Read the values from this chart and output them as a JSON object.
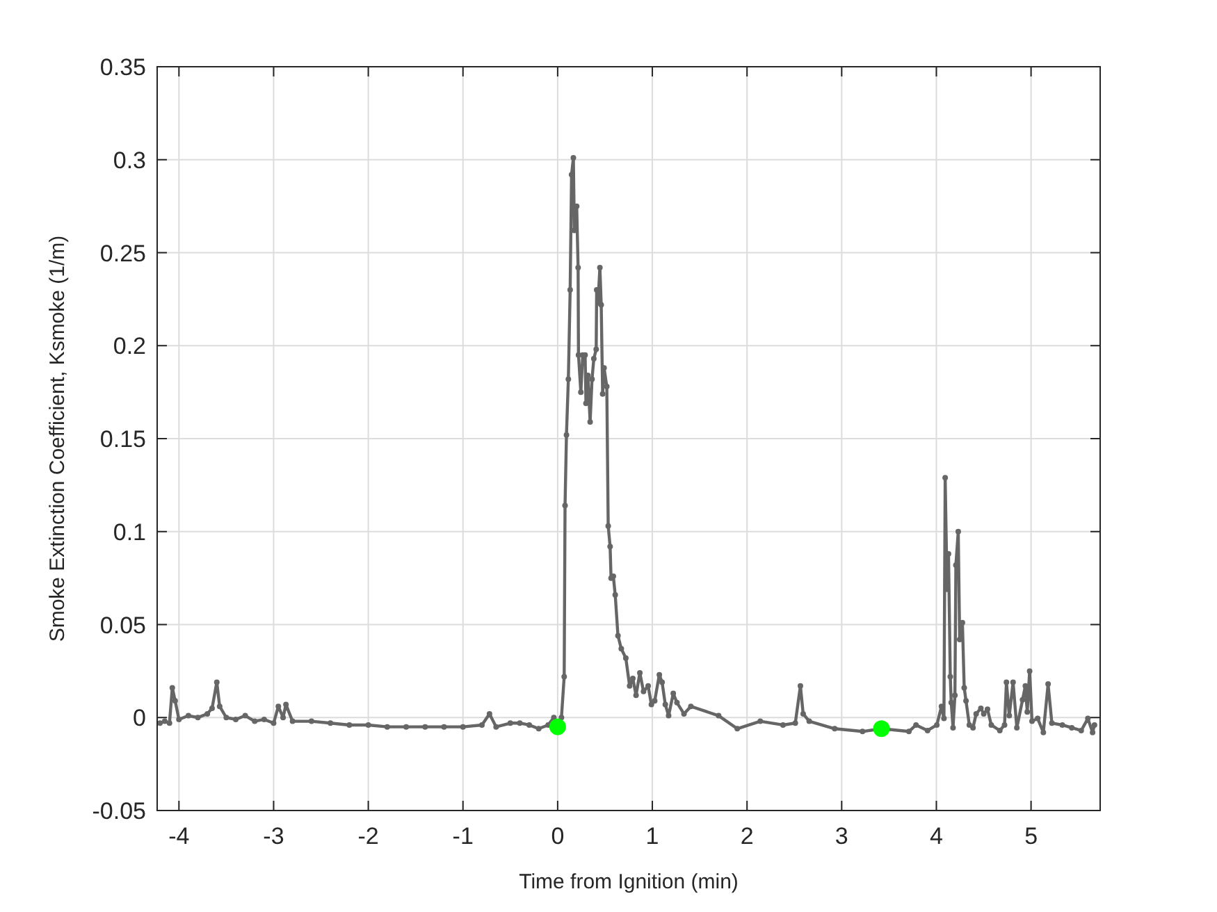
{
  "chart_data": {
    "type": "line",
    "xlabel": "Time from Ignition (min)",
    "ylabel": "Smoke Extinction Coefficient, Ksmoke (1/m)",
    "xlim": [
      -4.23,
      5.73
    ],
    "ylim": [
      -0.05,
      0.35
    ],
    "xticks": [
      -4,
      -3,
      -2,
      -1,
      0,
      1,
      2,
      3,
      4,
      5
    ],
    "yticks": [
      -0.05,
      0,
      0.05,
      0.1,
      0.15,
      0.2,
      0.25,
      0.3,
      0.35
    ],
    "grid": true,
    "marker": "circle",
    "series": [
      {
        "color": "#666666",
        "x": [
          -4.2,
          -4.15,
          -4.1,
          -4.07,
          -4.04,
          -4.0,
          -3.9,
          -3.8,
          -3.7,
          -3.65,
          -3.6,
          -3.57,
          -3.5,
          -3.4,
          -3.3,
          -3.2,
          -3.1,
          -3.0,
          -2.95,
          -2.9,
          -2.87,
          -2.8,
          -2.6,
          -2.4,
          -2.2,
          -2.0,
          -1.8,
          -1.6,
          -1.4,
          -1.2,
          -1.0,
          -0.8,
          -0.72,
          -0.65,
          -0.5,
          -0.4,
          -0.3,
          -0.2,
          -0.1,
          -0.04,
          0.0,
          0.04,
          0.069,
          0.078,
          0.093,
          0.113,
          0.132,
          0.147,
          0.166,
          0.176,
          0.201,
          0.216,
          0.22,
          0.245,
          0.265,
          0.29,
          0.299,
          0.319,
          0.343,
          0.363,
          0.382,
          0.407,
          0.412,
          0.426,
          0.446,
          0.46,
          0.475,
          0.49,
          0.519,
          0.534,
          0.554,
          0.564,
          0.588,
          0.608,
          0.637,
          0.672,
          0.72,
          0.76,
          0.794,
          0.828,
          0.868,
          0.907,
          0.956,
          0.99,
          1.025,
          1.074,
          1.103,
          1.137,
          1.172,
          1.221,
          1.26,
          1.334,
          1.407,
          1.7,
          1.897,
          2.14,
          2.38,
          2.51,
          2.564,
          2.593,
          2.657,
          2.926,
          3.22,
          3.42,
          3.71,
          3.785,
          3.907,
          4.005,
          4.054,
          4.08,
          4.093,
          4.113,
          4.128,
          4.147,
          4.157,
          4.176,
          4.196,
          4.206,
          4.231,
          4.246,
          4.275,
          4.294,
          4.313,
          4.348,
          4.387,
          4.42,
          4.47,
          4.5,
          4.54,
          4.58,
          4.67,
          4.72,
          4.74,
          4.77,
          4.81,
          4.85,
          4.91,
          4.94,
          4.96,
          4.985,
          5.01,
          5.07,
          5.13,
          5.18,
          5.22,
          5.33,
          5.43,
          5.53,
          5.6,
          5.65,
          5.67
        ],
        "values": [
          -0.003,
          -0.002,
          -0.003,
          0.016,
          0.009,
          -0.001,
          0.001,
          0.0,
          0.002,
          0.005,
          0.019,
          0.006,
          0.0,
          -0.001,
          0.001,
          -0.002,
          -0.001,
          -0.003,
          0.006,
          0.0,
          0.007,
          -0.002,
          -0.002,
          -0.003,
          -0.004,
          -0.004,
          -0.005,
          -0.005,
          -0.005,
          -0.005,
          -0.005,
          -0.004,
          0.002,
          -0.005,
          -0.003,
          -0.003,
          -0.004,
          -0.006,
          -0.004,
          0.0,
          -0.005,
          0.0,
          0.022,
          0.114,
          0.152,
          0.182,
          0.23,
          0.292,
          0.301,
          0.262,
          0.275,
          0.242,
          0.195,
          0.175,
          0.195,
          0.195,
          0.169,
          0.184,
          0.159,
          0.182,
          0.193,
          0.198,
          0.23,
          0.223,
          0.242,
          0.222,
          0.174,
          0.188,
          0.178,
          0.103,
          0.092,
          0.075,
          0.076,
          0.066,
          0.044,
          0.037,
          0.032,
          0.017,
          0.021,
          0.012,
          0.024,
          0.014,
          0.017,
          0.007,
          0.009,
          0.023,
          0.019,
          0.007,
          0.001,
          0.013,
          0.008,
          0.002,
          0.006,
          0.001,
          -0.006,
          -0.002,
          -0.004,
          -0.003,
          0.017,
          0.002,
          -0.002,
          -0.006,
          -0.0075,
          -0.006,
          -0.0075,
          -0.004,
          -0.007,
          -0.004,
          0.006,
          -0.0005,
          0.129,
          0.069,
          0.088,
          0.022,
          0.008,
          -0.0055,
          0.012,
          0.082,
          0.1,
          0.042,
          0.051,
          0.016,
          0.009,
          -0.004,
          -0.0055,
          0.002,
          0.005,
          0.002,
          0.0045,
          -0.004,
          -0.007,
          -0.004,
          0.019,
          0.001,
          0.019,
          -0.0055,
          0.0095,
          0.017,
          0.003,
          0.025,
          -0.002,
          -0.0005,
          -0.008,
          0.018,
          -0.003,
          -0.004,
          -0.0055,
          -0.007,
          -0.0005,
          -0.008,
          -0.004
        ]
      },
      {
        "type": "scatter",
        "color": "#00ff00",
        "x": [
          0.0,
          3.42
        ],
        "values": [
          -0.005,
          -0.006
        ]
      }
    ]
  }
}
